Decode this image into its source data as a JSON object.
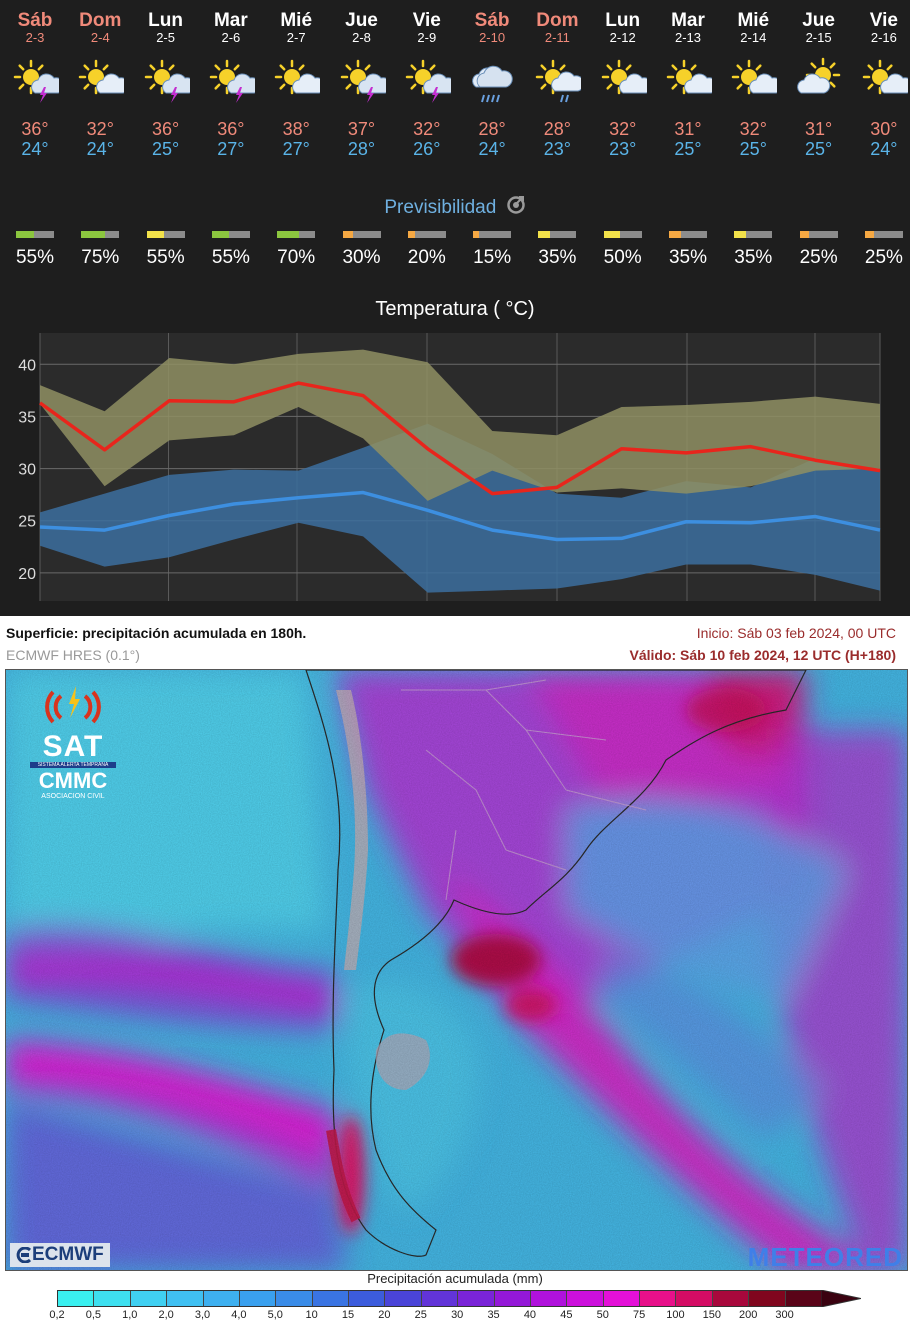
{
  "days": [
    {
      "name": "Sáb",
      "date": "2-3",
      "weekend": true,
      "icon": "sun-storm-icon",
      "tmax": "36°",
      "tmin": "24°",
      "pct": "55%",
      "color": "#8cc63f",
      "level": 0.55,
      "max": 36,
      "min": 24,
      "mean": 36.3,
      "meanmin": 24.4
    },
    {
      "name": "Dom",
      "date": "2-4",
      "weekend": true,
      "icon": "sun-cloud-icon",
      "tmax": "32°",
      "tmin": "24°",
      "pct": "75%",
      "color": "#8cc63f",
      "level": 0.75,
      "max": 32,
      "min": 24,
      "mean": 31.8,
      "meanmin": 24.1
    },
    {
      "name": "Lun",
      "date": "2-5",
      "weekend": false,
      "icon": "sun-storm-icon",
      "tmax": "36°",
      "tmin": "25°",
      "pct": "55%",
      "color": "#f2e14a",
      "level": 0.55,
      "max": 36,
      "min": 25,
      "mean": 36.5,
      "meanmin": 25.5
    },
    {
      "name": "Mar",
      "date": "2-6",
      "weekend": false,
      "icon": "sun-storm-icon",
      "tmax": "36°",
      "tmin": "27°",
      "pct": "55%",
      "color": "#8cc63f",
      "level": 0.55,
      "max": 36,
      "min": 27,
      "mean": 36.4,
      "meanmin": 26.6
    },
    {
      "name": "Mié",
      "date": "2-7",
      "weekend": false,
      "icon": "sun-cloud-icon",
      "tmax": "38°",
      "tmin": "27°",
      "pct": "70%",
      "color": "#8cc63f",
      "level": 0.7,
      "max": 38,
      "min": 27,
      "mean": 38.2,
      "meanmin": 27.2
    },
    {
      "name": "Jue",
      "date": "2-8",
      "weekend": false,
      "icon": "sun-storm-icon",
      "tmax": "37°",
      "tmin": "28°",
      "pct": "30%",
      "color": "#f5a843",
      "level": 0.3,
      "max": 37,
      "min": 28,
      "mean": 37.0,
      "meanmin": 27.7
    },
    {
      "name": "Vie",
      "date": "2-9",
      "weekend": false,
      "icon": "sun-storm-icon",
      "tmax": "32°",
      "tmin": "26°",
      "pct": "20%",
      "color": "#f5a843",
      "level": 0.2,
      "max": 32,
      "min": 26,
      "mean": 31.9,
      "meanmin": 26.0
    },
    {
      "name": "Sáb",
      "date": "2-10",
      "weekend": true,
      "icon": "rain-cloud-icon",
      "tmax": "28°",
      "tmin": "24°",
      "pct": "15%",
      "color": "#f5a843",
      "level": 0.15,
      "max": 28,
      "min": 24,
      "mean": 27.6,
      "meanmin": 24.1
    },
    {
      "name": "Dom",
      "date": "2-11",
      "weekend": true,
      "icon": "sun-rain-icon",
      "tmax": "28°",
      "tmin": "23°",
      "pct": "35%",
      "color": "#f2e14a",
      "level": 0.35,
      "max": 28,
      "min": 23,
      "mean": 28.2,
      "meanmin": 23.2
    },
    {
      "name": "Lun",
      "date": "2-12",
      "weekend": false,
      "icon": "sun-cloud-icon",
      "tmax": "32°",
      "tmin": "23°",
      "pct": "50%",
      "color": "#f2e14a",
      "level": 0.5,
      "max": 32,
      "min": 23,
      "mean": 31.9,
      "meanmin": 23.3
    },
    {
      "name": "Mar",
      "date": "2-13",
      "weekend": false,
      "icon": "sun-cloud-icon",
      "tmax": "31°",
      "tmin": "25°",
      "pct": "35%",
      "color": "#f5a843",
      "level": 0.35,
      "max": 31,
      "min": 25,
      "mean": 31.5,
      "meanmin": 24.9
    },
    {
      "name": "Mié",
      "date": "2-14",
      "weekend": false,
      "icon": "sun-cloud-icon",
      "tmax": "32°",
      "tmin": "25°",
      "pct": "35%",
      "color": "#f2e14a",
      "level": 0.35,
      "max": 32,
      "min": 25,
      "mean": 32.1,
      "meanmin": 24.8
    },
    {
      "name": "Jue",
      "date": "2-15",
      "weekend": false,
      "icon": "cloud-sun-icon",
      "tmax": "31°",
      "tmin": "25°",
      "pct": "25%",
      "color": "#f5a843",
      "level": 0.25,
      "max": 31,
      "min": 25,
      "mean": 30.8,
      "meanmin": 25.4
    },
    {
      "name": "Vie",
      "date": "2-16",
      "weekend": false,
      "icon": "sun-cloud-icon",
      "tmax": "30°",
      "tmin": "24°",
      "pct": "25%",
      "color": "#f5a843",
      "level": 0.25,
      "max": 30,
      "min": 24,
      "mean": 29.8,
      "meanmin": 24.1
    }
  ],
  "previsibilidad_label": "Previsibilidad",
  "chart_data": {
    "type": "line",
    "title": "Temperatura ( °C)",
    "yticks": [
      "40",
      "35",
      "30",
      "25",
      "20"
    ],
    "ylim": [
      17.3,
      43
    ],
    "x": [
      "2-3",
      "2-4",
      "2-5",
      "2-6",
      "2-7",
      "2-8",
      "2-9",
      "2-10",
      "2-11",
      "2-12",
      "2-13",
      "2-14",
      "2-15",
      "2-16"
    ],
    "series": [
      {
        "values": [
          36.3,
          31.8,
          36.5,
          36.4,
          38.2,
          37.0,
          31.9,
          27.6,
          28.2,
          31.9,
          31.5,
          32.1,
          30.8,
          29.8
        ],
        "color": "#e8251c"
      },
      {
        "values": [
          24.4,
          24.1,
          25.5,
          26.6,
          27.2,
          27.7,
          26.0,
          24.1,
          23.2,
          23.3,
          24.9,
          24.8,
          25.4,
          24.1
        ],
        "color": "#3d8fe0"
      }
    ],
    "max_band": {
      "upper": [
        38,
        35.5,
        40.6,
        40,
        41,
        41.4,
        40.2,
        33.6,
        33.2,
        35.9,
        36.1,
        36.4,
        36.9,
        36.2
      ],
      "lower": [
        36.2,
        28.3,
        32.7,
        33.2,
        35.9,
        32.9,
        26.9,
        29.8,
        27.7,
        28.1,
        27.6,
        28.3,
        29.8,
        30.0
      ],
      "color": "#8f8f63"
    },
    "min_band": {
      "upper": [
        25.8,
        27.6,
        29.4,
        29.9,
        29.8,
        32.0,
        34.3,
        31.4,
        27.6,
        27.2,
        28.8,
        28.2,
        31.0,
        29.7
      ],
      "lower": [
        22.6,
        20.6,
        21.5,
        23.2,
        24.8,
        23.5,
        18.1,
        18.3,
        18.5,
        19.4,
        20.8,
        20.8,
        19.8,
        18.3
      ],
      "color": "#3c6f9f"
    },
    "grid": true
  },
  "map": {
    "title": "Superficie: precipitación acumulada en 180h.",
    "model": "ECMWF HRES (0.1°)",
    "inicio": "Inicio: Sáb 03 feb 2024, 00 UTC",
    "valido": "Válido: Sáb 10 feb 2024, 12 UTC (H+180)",
    "logo_sat": "SAT",
    "logo_sat_sub": "SISTEMA ALERTA TEMPRANA",
    "logo_cmmc": "CMMC",
    "logo_cmmc_sub": "ASOCIACION CIVIL",
    "logo_ecmwf": "ECMWF",
    "logo_meteored": "METEORED",
    "legend_title": "Precipitación acumulada (mm)",
    "legend_labels": [
      "0,2",
      "0,5",
      "1,0",
      "2,0",
      "3,0",
      "4,0",
      "5,0",
      "10",
      "15",
      "20",
      "25",
      "30",
      "35",
      "40",
      "45",
      "50",
      "75",
      "100",
      "150",
      "200",
      "300"
    ],
    "legend_colors": [
      "#3af0f0",
      "#3ee0f0",
      "#40d0f2",
      "#40c0f2",
      "#3eb0f0",
      "#3aa0ee",
      "#3a8ce8",
      "#3a74e2",
      "#3c5cdc",
      "#4a44d8",
      "#6234d8",
      "#7a24d8",
      "#9418d8",
      "#b012dc",
      "#cc10dc",
      "#e410d8",
      "#e8108a",
      "#d40c64",
      "#a8083c",
      "#80061e",
      "#5a0418"
    ]
  }
}
